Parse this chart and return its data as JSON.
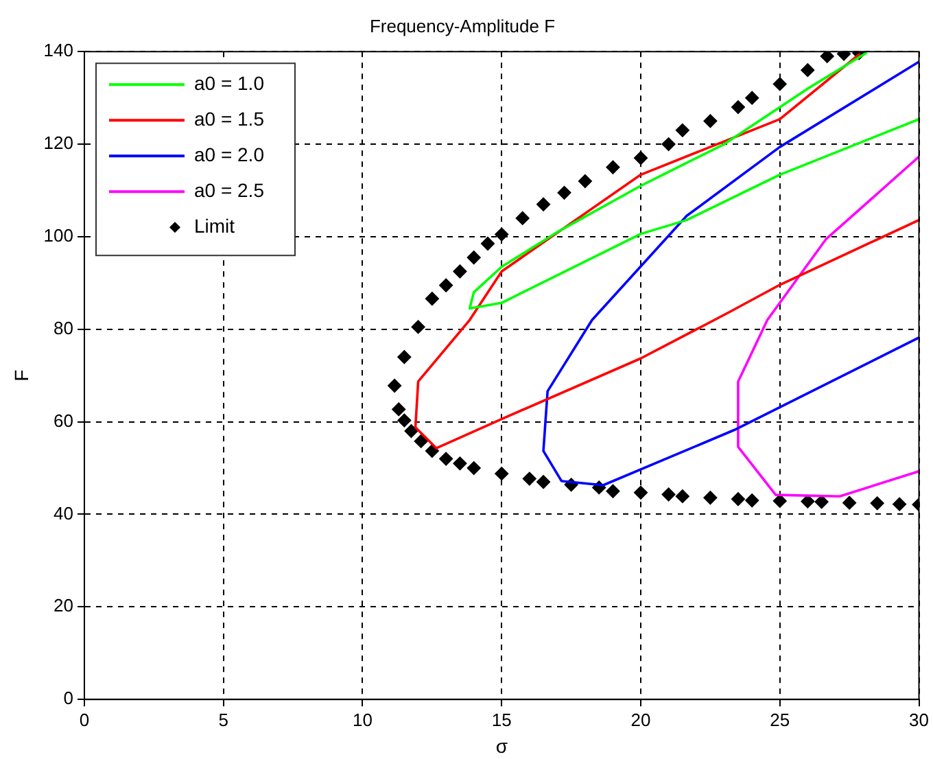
{
  "chart_data": {
    "type": "line",
    "title": "Frequency-Amplitude F",
    "xlabel": "σ",
    "ylabel": "F",
    "xlim": [
      0,
      30
    ],
    "xticks": [
      0,
      5,
      10,
      15,
      20,
      25,
      30
    ],
    "ylim": [
      0,
      140
    ],
    "yticks": [
      0,
      20,
      40,
      60,
      80,
      100,
      120,
      140
    ],
    "grid": true,
    "legend": "top left",
    "line_style": "solid",
    "series": [
      {
        "name": "a0 = 1.0",
        "color": "#00ff00",
        "type": "line",
        "marker": "none",
        "x": [
          30,
          25,
          21.65,
          20,
          15,
          13.85,
          14,
          15,
          17,
          20,
          23,
          26,
          28.1
        ],
        "values": [
          125.4,
          113.4,
          103.6,
          100.6,
          85.7,
          84.5,
          88,
          93.5,
          101,
          111,
          120,
          132,
          139.7
        ]
      },
      {
        "name": "a0 = 1.5",
        "color": "#ff0000",
        "type": "line",
        "marker": "none",
        "x": [
          27.85,
          25,
          20,
          15,
          13.85,
          12,
          11.9,
          12.65,
          15,
          20,
          23.15,
          25,
          30
        ],
        "values": [
          139.4,
          125.4,
          113.4,
          92.5,
          82,
          68.7,
          58.8,
          54.3,
          60.6,
          73.7,
          83.6,
          89.6,
          103.6
        ]
      },
      {
        "name": "a0 = 2.0",
        "color": "#0000ff",
        "type": "line",
        "marker": "none",
        "x": [
          30,
          25,
          21.65,
          18.25,
          16.65,
          16.5,
          17.15,
          18.65,
          23.35,
          30
        ],
        "values": [
          137.8,
          119.4,
          104.5,
          82,
          66.6,
          53.7,
          47.2,
          46.3,
          58.2,
          78.2
        ]
      },
      {
        "name": "a0 = 2.5",
        "color": "#ff00ff",
        "type": "line",
        "marker": "none",
        "x": [
          30,
          26.65,
          24.55,
          23.5,
          23.5,
          24.85,
          27.15,
          30
        ],
        "values": [
          117.3,
          99.4,
          82,
          68.7,
          54.6,
          44.2,
          43.9,
          49.3
        ]
      },
      {
        "name": "Limit",
        "color": "#000000",
        "type": "scatter",
        "marker": "diamond",
        "x": [
          11.15,
          11.5,
          12,
          12.5,
          13,
          13.5,
          14,
          14.5,
          15,
          15.75,
          16.5,
          17.25,
          18,
          19,
          20,
          21,
          21.5,
          22.5,
          23.5,
          24,
          25,
          26,
          26.7,
          27.3,
          27.85,
          11.3,
          11.5,
          11.75,
          12.1,
          12.5,
          13,
          13.5,
          14,
          15,
          16,
          16.5,
          17.5,
          18.5,
          19,
          20,
          21,
          21.5,
          22.5,
          23.5,
          24,
          25,
          26,
          26.5,
          27.5,
          28.5,
          29.3,
          30
        ],
        "values": [
          67.8,
          74,
          80.5,
          86.6,
          89.5,
          92.5,
          95.5,
          98.5,
          100.5,
          104,
          107,
          109.5,
          112,
          115,
          117,
          120,
          123,
          125,
          128,
          130,
          133,
          136,
          139,
          139.5,
          139.7,
          62.7,
          60.3,
          58,
          55.8,
          53.7,
          52,
          51,
          50,
          48.8,
          47.7,
          47,
          46.4,
          45.8,
          45,
          44.7,
          44.3,
          43.9,
          43.6,
          43.3,
          43,
          42.9,
          42.8,
          42.7,
          42.5,
          42.4,
          42.2,
          42.1
        ]
      }
    ]
  }
}
